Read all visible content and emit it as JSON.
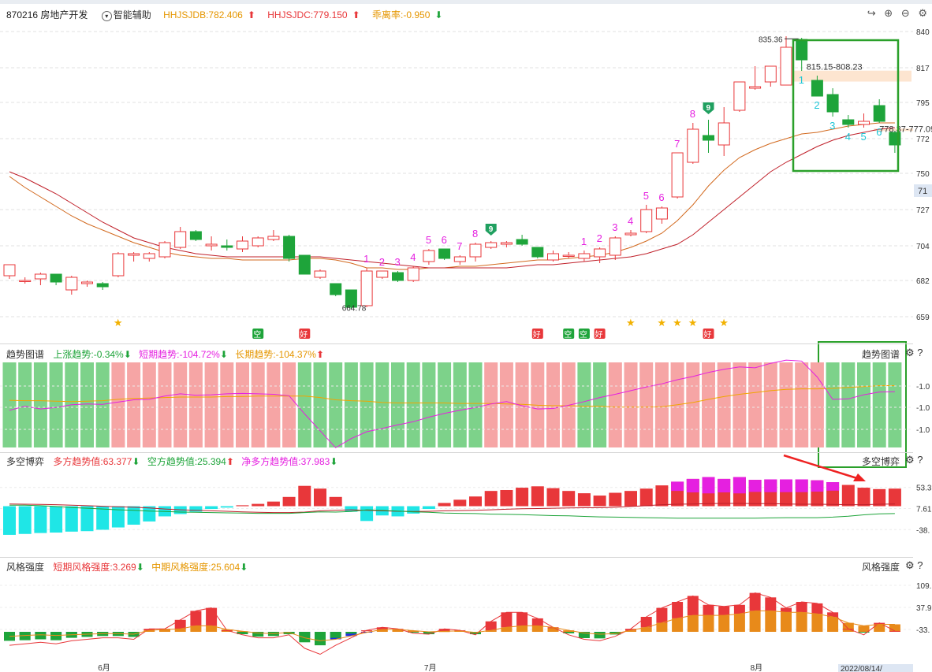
{
  "header": {
    "code_name": "870216 房地产开发",
    "assist_label": "智能辅助",
    "hhjsjdb": "HHJSJDB:782.406",
    "hhjsjdc": "HHJSJDC:779.150",
    "deviation": "乖离率:-0.950",
    "icons": [
      "share-icon",
      "zoom-in-icon",
      "zoom-out-icon",
      "settings-icon"
    ]
  },
  "colors": {
    "up": "#e8373a",
    "down": "#1ea43a",
    "magenta": "#e520e0",
    "orange": "#f0a500",
    "cyan": "#1fe6e6",
    "green_box": "#2aa02a",
    "lightgreen": "#7dd28a",
    "lightred": "#f6a5a5"
  },
  "main_axis": {
    "ticks": [
      "840",
      "817",
      "795",
      "772",
      "750",
      "727",
      "704",
      "682",
      "659"
    ],
    "current": "71"
  },
  "annotations": {
    "high": "835.36",
    "low": "664.78",
    "zone1": "815.15-808.23",
    "zone2": "778.37-777.09"
  },
  "signals": {
    "kong": "空",
    "hao": "好",
    "nine": "9"
  },
  "trend_panel": {
    "title": "趋势图谱",
    "up_trend": "上涨趋势:-0.34%",
    "short_trend": "短期趋势:-104.72%",
    "long_trend": "长期趋势:-104.37%",
    "right_label": "趋势图谱",
    "ticks": [
      "-1.0",
      "-1.0",
      "-1.0"
    ]
  },
  "game_panel": {
    "title": "多空博弈",
    "long_val": "多方趋势值:63.377",
    "short_val": "空方趋势值:25.394",
    "net_val": "净多方趋势值:37.983",
    "right_label": "多空博弈",
    "ticks": [
      "53.3",
      "7.61",
      "-38."
    ]
  },
  "style_panel": {
    "title": "风格强度",
    "short_strength": "短期风格强度:3.269",
    "mid_strength": "中期风格强度:25.604",
    "right_label": "风格强度",
    "ticks": [
      "109.",
      "37.9",
      "-33."
    ]
  },
  "x_axis": {
    "labels": [
      "6月",
      "7月",
      "8月"
    ],
    "cursor_date": "2022/08/14/"
  },
  "chart_data": [
    {
      "type": "candlestick",
      "title": "870216 房地产开发",
      "ylim": [
        650,
        845
      ],
      "candles": [
        [
          685,
          692,
          692,
          683
        ],
        [
          682,
          682,
          684,
          680
        ],
        [
          683,
          686,
          687,
          679
        ],
        [
          686,
          681,
          686,
          679
        ],
        [
          676,
          684,
          685,
          673
        ],
        [
          680,
          681,
          682,
          678
        ],
        [
          680,
          678,
          681,
          676
        ],
        [
          685,
          699,
          700,
          684
        ],
        [
          698,
          699,
          700,
          694
        ],
        [
          696,
          699,
          700,
          694
        ],
        [
          697,
          706,
          707,
          696
        ],
        [
          703,
          713,
          716,
          702
        ],
        [
          713,
          708,
          714,
          707
        ],
        [
          704,
          705,
          710,
          701
        ],
        [
          704,
          703,
          708,
          701
        ],
        [
          702,
          707,
          710,
          700
        ],
        [
          704,
          709,
          710,
          703
        ],
        [
          708,
          710,
          714,
          707
        ],
        [
          710,
          696,
          711,
          694
        ],
        [
          698,
          686,
          698,
          686
        ],
        [
          684,
          688,
          689,
          683
        ],
        [
          680,
          673,
          680,
          672
        ],
        [
          676,
          665,
          676,
          664
        ],
        [
          666,
          688,
          690,
          665
        ],
        [
          684,
          688,
          688,
          683
        ],
        [
          687,
          682,
          688,
          681
        ],
        [
          682,
          690,
          691,
          681
        ],
        [
          694,
          701,
          702,
          692
        ],
        [
          702,
          696,
          702,
          695
        ],
        [
          694,
          697,
          698,
          692
        ],
        [
          697,
          705,
          706,
          694
        ],
        [
          703,
          706,
          707,
          702
        ],
        [
          705,
          706,
          707,
          703
        ],
        [
          708,
          705,
          711,
          704
        ],
        [
          703,
          697,
          703,
          696
        ],
        [
          695,
          699,
          701,
          694
        ],
        [
          698,
          698,
          700,
          696
        ],
        [
          696,
          699,
          701,
          694
        ],
        [
          697,
          702,
          703,
          693
        ],
        [
          698,
          709,
          710,
          695
        ],
        [
          711,
          712,
          714,
          710
        ],
        [
          713,
          727,
          730,
          712
        ],
        [
          721,
          728,
          729,
          718
        ],
        [
          735,
          763,
          763,
          734
        ],
        [
          757,
          778,
          782,
          756
        ],
        [
          774,
          771,
          784,
          763
        ],
        [
          768,
          782,
          792,
          761
        ],
        [
          790,
          808,
          808,
          789
        ],
        [
          804,
          805,
          818,
          803
        ],
        [
          808,
          818,
          818,
          805
        ],
        [
          806,
          830,
          837,
          806
        ],
        [
          835,
          822,
          836,
          815
        ],
        [
          809,
          799,
          812,
          799
        ],
        [
          800,
          789,
          804,
          786
        ],
        [
          784,
          781,
          787,
          779
        ],
        [
          781,
          783,
          788,
          779
        ],
        [
          793,
          783,
          797,
          782
        ],
        [
          776,
          768,
          777,
          763
        ]
      ],
      "ma_orange": [
        748,
        741,
        735,
        729,
        723,
        718,
        714,
        710,
        706,
        703,
        700,
        698,
        697,
        696,
        696,
        695,
        695,
        695,
        695,
        696,
        696,
        695,
        693,
        690,
        690,
        689,
        689,
        690,
        690,
        691,
        691,
        692,
        693,
        694,
        695,
        695,
        696,
        697,
        698,
        700,
        703,
        707,
        712,
        720,
        730,
        742,
        752,
        760,
        765,
        769,
        772,
        775,
        776,
        778,
        780,
        781,
        782,
        782
      ],
      "ma_red": [
        751,
        747,
        742,
        737,
        731,
        725,
        719,
        714,
        709,
        706,
        703,
        701,
        699,
        698,
        697,
        697,
        697,
        697,
        697,
        697,
        697,
        696,
        695,
        694,
        693,
        692,
        691,
        690,
        690,
        690,
        690,
        690,
        690,
        691,
        692,
        692,
        693,
        694,
        695,
        696,
        697,
        699,
        702,
        705,
        711,
        719,
        727,
        735,
        743,
        751,
        757,
        762,
        767,
        771,
        774,
        776,
        778,
        779
      ]
    },
    {
      "type": "bar",
      "title": "趋势图谱",
      "bar_color_states": [
        "down",
        "down",
        "down",
        "down",
        "down",
        "down",
        "down",
        "up",
        "up",
        "up",
        "up",
        "up",
        "up",
        "up",
        "up",
        "up",
        "up",
        "up",
        "up",
        "down",
        "down",
        "down",
        "down",
        "down",
        "down",
        "down",
        "down",
        "down",
        "down",
        "down",
        "down",
        "up",
        "up",
        "up",
        "up",
        "up",
        "up",
        "down",
        "down",
        "up",
        "up",
        "up",
        "up",
        "up",
        "up",
        "up",
        "up",
        "up",
        "up",
        "up",
        "up",
        "up",
        "up",
        "down",
        "down",
        "down",
        "down",
        "down"
      ],
      "series": [
        {
          "name": "短期趋势",
          "values": [
            -1.15,
            -1.06,
            -1.12,
            -1.09,
            -1.03,
            -1.01,
            -1.02,
            -0.97,
            -0.92,
            -0.91,
            -0.84,
            -0.79,
            -0.82,
            -0.81,
            -0.79,
            -0.78,
            -0.79,
            -0.8,
            -0.83,
            -1.23,
            -1.6,
            -1.97,
            -1.77,
            -1.62,
            -1.55,
            -1.47,
            -1.4,
            -1.3,
            -1.22,
            -1.15,
            -1.09,
            -1.01,
            -0.96,
            -1.05,
            -1.12,
            -1.11,
            -1.04,
            -0.96,
            -0.87,
            -0.8,
            -0.72,
            -0.64,
            -0.57,
            -0.48,
            -0.41,
            -0.32,
            -0.25,
            -0.2,
            -0.22,
            -0.12,
            -0.05,
            -0.07,
            -0.42,
            -0.91,
            -0.9,
            -0.81,
            -0.75,
            -0.74
          ]
        },
        {
          "name": "长期趋势",
          "values": [
            -0.93,
            -0.94,
            -0.94,
            -0.95,
            -0.96,
            -0.95,
            -0.94,
            -0.91,
            -0.89,
            -0.88,
            -0.87,
            -0.86,
            -0.86,
            -0.86,
            -0.85,
            -0.85,
            -0.84,
            -0.84,
            -0.84,
            -0.84,
            -0.87,
            -0.92,
            -0.94,
            -0.95,
            -0.98,
            -0.99,
            -0.99,
            -0.99,
            -0.99,
            -1.0,
            -1.0,
            -1.0,
            -1.01,
            -1.02,
            -1.04,
            -1.05,
            -1.05,
            -1.06,
            -1.06,
            -1.08,
            -1.08,
            -1.08,
            -1.07,
            -1.03,
            -0.98,
            -0.91,
            -0.85,
            -0.8,
            -0.76,
            -0.72,
            -0.69,
            -0.68,
            -0.68,
            -0.67,
            -0.65,
            -0.63,
            -0.61,
            -0.61
          ]
        }
      ]
    },
    {
      "type": "bar",
      "title": "多空博弈",
      "series": [
        {
          "name": "净多方趋势值",
          "values": [
            -62,
            -60,
            -58,
            -57,
            -55,
            -54,
            -51,
            -46,
            -40,
            -33,
            -22,
            -17,
            -12,
            -6,
            -3,
            2,
            5,
            10,
            20,
            44,
            38,
            20,
            -12,
            -32,
            -20,
            -22,
            -16,
            -6,
            7,
            14,
            21,
            33,
            35,
            40,
            43,
            39,
            33,
            28,
            23,
            29,
            33,
            38,
            45,
            53,
            59,
            63,
            59,
            63,
            57,
            58,
            58,
            58,
            56,
            52,
            46,
            40,
            37,
            38
          ]
        },
        {
          "name": "多方趋势值",
          "values": [
            63,
            62,
            61,
            60,
            58,
            56,
            54,
            52,
            50,
            47,
            43,
            40,
            38,
            36,
            34,
            32,
            30,
            29,
            29,
            31,
            36,
            38,
            40,
            38,
            36,
            34,
            33,
            34,
            36,
            37,
            38,
            40,
            42,
            44,
            45,
            46,
            47,
            48,
            48,
            50,
            53,
            56,
            60,
            62,
            63,
            64,
            65,
            65,
            64,
            64,
            63,
            62,
            62,
            61,
            60,
            60,
            62,
            63
          ]
        },
        {
          "name": "空方趋势值",
          "values": [
            58,
            58,
            56,
            53,
            49,
            46,
            43,
            40,
            38,
            35,
            33,
            31,
            30,
            29,
            28,
            27,
            26,
            26,
            26,
            29,
            32,
            31,
            33,
            40,
            38,
            35,
            32,
            30,
            27,
            26,
            25,
            23,
            22,
            21,
            19,
            17,
            16,
            14,
            12,
            11,
            10,
            9,
            8,
            7,
            7,
            7,
            7,
            7,
            7,
            8,
            9,
            9,
            9,
            11,
            15,
            20,
            24,
            25
          ]
        }
      ]
    },
    {
      "type": "bar",
      "title": "风格强度",
      "series": [
        {
          "name": "短期风格强度",
          "values": [
            -45,
            -40,
            -35,
            -40,
            -30,
            -25,
            -20,
            -20,
            -25,
            10,
            10,
            40,
            70,
            80,
            5,
            -10,
            -20,
            -20,
            -10,
            -55,
            -75,
            -45,
            -20,
            5,
            15,
            10,
            -5,
            -8,
            10,
            5,
            -10,
            35,
            65,
            65,
            45,
            15,
            -10,
            -25,
            -30,
            -15,
            10,
            50,
            80,
            100,
            120,
            90,
            85,
            90,
            130,
            115,
            80,
            100,
            95,
            65,
            10,
            -10,
            30,
            3
          ]
        },
        {
          "name": "中期风格强度",
          "values": [
            -15,
            -12,
            -10,
            -12,
            -10,
            -8,
            -6,
            -6,
            -8,
            5,
            8,
            10,
            20,
            20,
            8,
            2,
            -4,
            -6,
            -2,
            -20,
            -30,
            -25,
            -14,
            -2,
            8,
            8,
            4,
            0,
            2,
            3,
            -2,
            5,
            15,
            20,
            20,
            15,
            5,
            -4,
            -8,
            -6,
            5,
            15,
            30,
            45,
            55,
            55,
            55,
            60,
            70,
            70,
            65,
            65,
            60,
            50,
            30,
            20,
            25,
            25
          ]
        }
      ]
    }
  ]
}
